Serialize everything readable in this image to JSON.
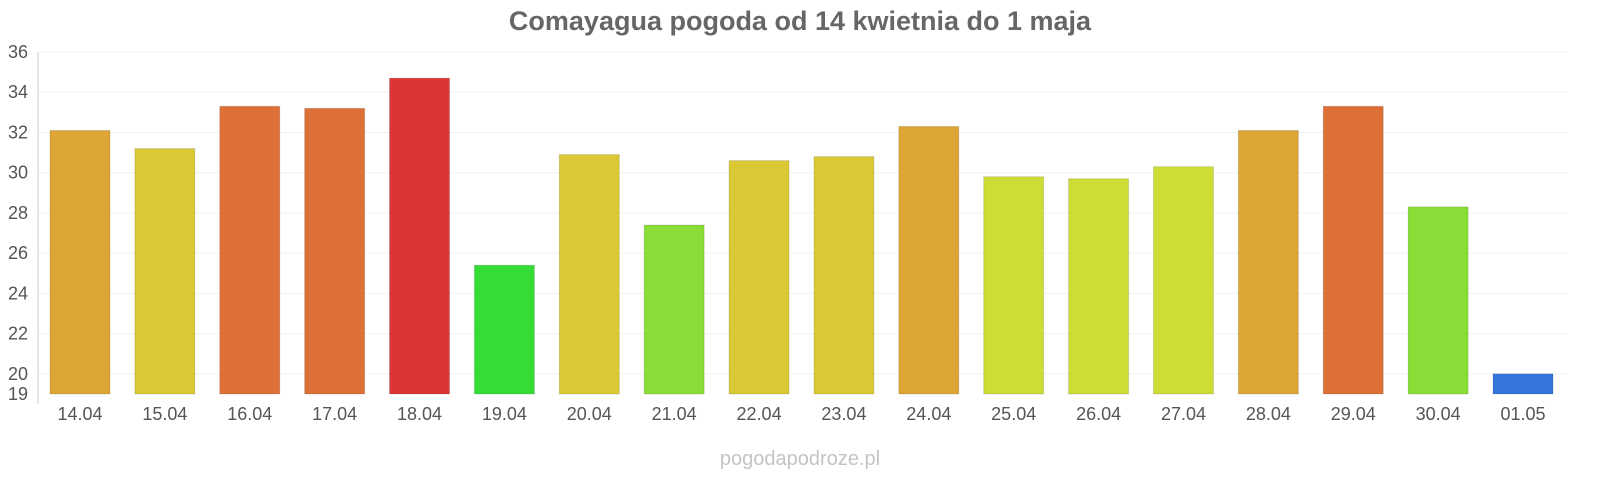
{
  "page": {
    "watermark": "pogodapodroze.pl"
  },
  "chart_data": {
    "type": "bar",
    "title": "Comayagua pogoda od 14 kwietnia do 1 maja",
    "xlabel": "",
    "ylabel": "",
    "ylim": [
      19,
      36
    ],
    "yticks": [
      19,
      20,
      22,
      24,
      26,
      28,
      30,
      32,
      34,
      36
    ],
    "grid": true,
    "legend": "none",
    "categories": [
      "14.04",
      "15.04",
      "16.04",
      "17.04",
      "18.04",
      "19.04",
      "20.04",
      "21.04",
      "22.04",
      "23.04",
      "24.04",
      "25.04",
      "26.04",
      "27.04",
      "28.04",
      "29.04",
      "30.04",
      "01.05"
    ],
    "values": [
      32.1,
      31.2,
      33.3,
      33.2,
      34.7,
      25.4,
      30.9,
      27.4,
      30.6,
      30.8,
      32.3,
      29.8,
      29.7,
      30.3,
      32.1,
      33.3,
      28.3,
      20.0
    ],
    "colors": [
      "#dca536",
      "#dac935",
      "#dd7036",
      "#dd7036",
      "#dc3536",
      "#35dc36",
      "#dac935",
      "#8adc36",
      "#dac935",
      "#dac935",
      "#dca536",
      "#cddd35",
      "#cddd35",
      "#cddd35",
      "#dca536",
      "#dd7036",
      "#8adc36",
      "#3576dc"
    ]
  }
}
